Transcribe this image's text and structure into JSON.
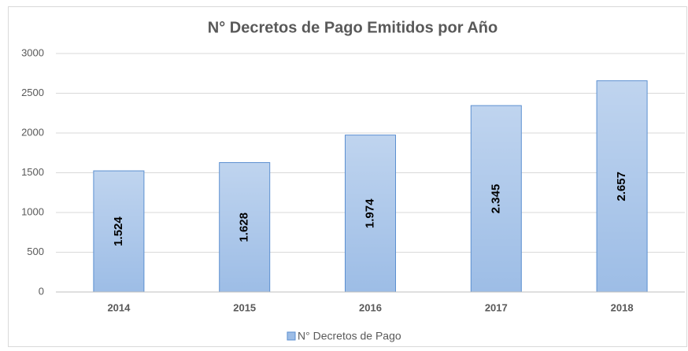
{
  "chart_data": {
    "type": "bar",
    "title": "N° Decretos de Pago Emitidos por Año",
    "categories": [
      "2014",
      "2015",
      "2016",
      "2017",
      "2018"
    ],
    "series": [
      {
        "name": "N° Decretos de Pago",
        "color": "#9dbde6",
        "values": [
          1524,
          1628,
          1974,
          2345,
          2657
        ],
        "value_labels": [
          "1.524",
          "1.628",
          "1.974",
          "2.345",
          "2.657"
        ]
      }
    ],
    "ylim": [
      0,
      3000
    ],
    "yticks": [
      0,
      500,
      1000,
      1500,
      2000,
      2500,
      3000
    ],
    "grid": true,
    "legend": "bottom"
  }
}
